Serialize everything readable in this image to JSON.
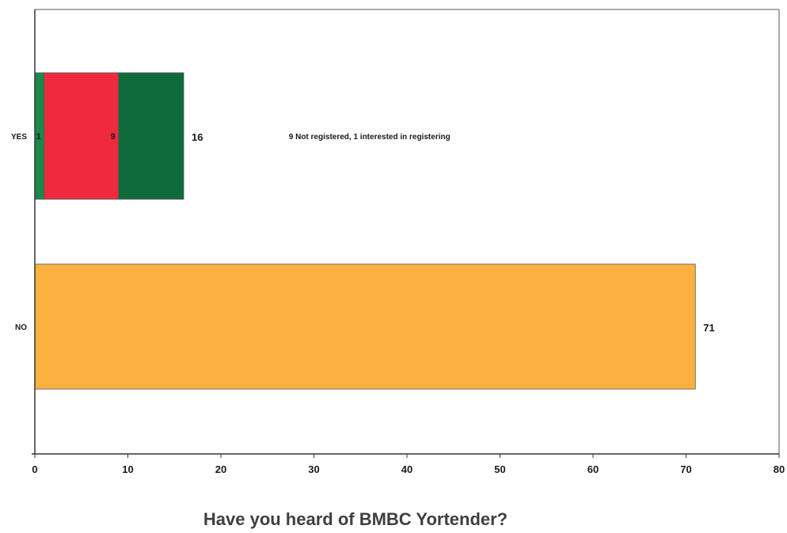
{
  "chart_data": {
    "type": "bar",
    "orientation": "horizontal",
    "title": "Have you heard of BMBC Yortender?",
    "xlim": [
      0,
      80
    ],
    "x_ticks": [
      0,
      10,
      20,
      30,
      40,
      50,
      60,
      70,
      80
    ],
    "categories": [
      "YES",
      "NO"
    ],
    "bars": [
      {
        "category": "YES",
        "total": 16,
        "segments": [
          {
            "value": 1,
            "label": "1",
            "color": "#1a8a4a"
          },
          {
            "value": 8,
            "label": "9",
            "color": "#f02a3e"
          },
          {
            "value": 7,
            "label": "",
            "color": "#0f6b3c"
          }
        ]
      },
      {
        "category": "NO",
        "total": 71,
        "segments": [
          {
            "value": 71,
            "label": "",
            "color": "#fbb040"
          }
        ]
      }
    ],
    "annotation": "9 Not registered, 1 interested in registering",
    "grid": false,
    "legend": "none"
  }
}
